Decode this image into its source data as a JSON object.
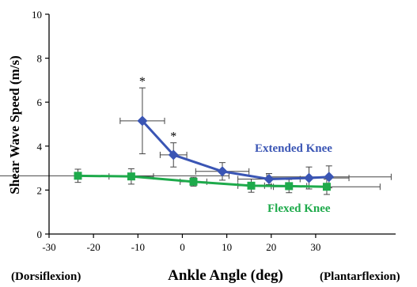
{
  "chart_data": {
    "type": "scatter",
    "xlabel": "Ankle Angle (deg)",
    "ylabel": "Shear Wave Speed (m/s)",
    "xlim": [
      -30,
      48
    ],
    "ylim": [
      0,
      10
    ],
    "x_ticks": [
      -30,
      -20,
      -10,
      0,
      10,
      20,
      30
    ],
    "y_ticks": [
      0,
      2,
      4,
      6,
      8,
      10
    ],
    "x_ext_left": "(Dorsiflexion)",
    "x_ext_right": "(Plantarflexion)",
    "grid": false,
    "series": [
      {
        "name": "Extended Knee",
        "color": "#3a55b4",
        "marker": "diamond",
        "points": [
          {
            "x": -9,
            "y": 5.15,
            "xerr": 5.0,
            "yerr": 1.5,
            "star": true
          },
          {
            "x": -2,
            "y": 3.6,
            "xerr": 3.0,
            "yerr": 0.55,
            "star": true
          },
          {
            "x": 9,
            "y": 2.85,
            "xerr": 6.0,
            "yerr": 0.4
          },
          {
            "x": 19.5,
            "y": 2.5,
            "xerr": 7.0,
            "yerr": 0.25
          },
          {
            "x": 28.5,
            "y": 2.55,
            "xerr": 9.0,
            "yerr": 0.5
          },
          {
            "x": 33,
            "y": 2.6,
            "xerr": 14.0,
            "yerr": 0.5
          }
        ]
      },
      {
        "name": "Flexed Knee",
        "color": "#1eaa4b",
        "marker": "square",
        "points": [
          {
            "x": -23.5,
            "y": 2.65,
            "xerr": 34.0,
            "yerr": 0.3
          },
          {
            "x": -11.5,
            "y": 2.62,
            "xerr": 5.0,
            "yerr": 0.35
          },
          {
            "x": 2.5,
            "y": 2.38,
            "xerr": 3.0,
            "yerr": 0.2
          },
          {
            "x": 15.5,
            "y": 2.2,
            "xerr": 3.0,
            "yerr": 0.3
          },
          {
            "x": 24,
            "y": 2.18,
            "xerr": 4.0,
            "yerr": 0.3
          },
          {
            "x": 32.5,
            "y": 2.15,
            "xerr": 12.0,
            "yerr": 0.35
          }
        ]
      }
    ]
  }
}
